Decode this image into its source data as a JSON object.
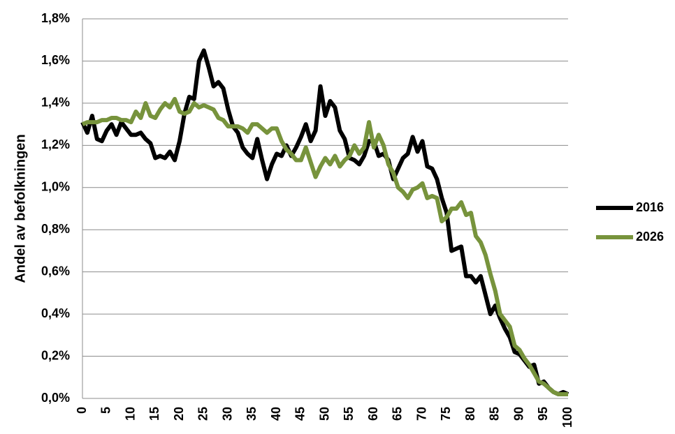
{
  "chart_data": {
    "type": "line",
    "y_label": "Andel  av befolkningen",
    "x": [
      0,
      1,
      2,
      3,
      4,
      5,
      6,
      7,
      8,
      9,
      10,
      11,
      12,
      13,
      14,
      15,
      16,
      17,
      18,
      19,
      20,
      21,
      22,
      23,
      24,
      25,
      26,
      27,
      28,
      29,
      30,
      31,
      32,
      33,
      34,
      35,
      36,
      37,
      38,
      39,
      40,
      41,
      42,
      43,
      44,
      45,
      46,
      47,
      48,
      49,
      50,
      51,
      52,
      53,
      54,
      55,
      56,
      57,
      58,
      59,
      60,
      61,
      62,
      63,
      64,
      65,
      66,
      67,
      68,
      69,
      70,
      71,
      72,
      73,
      74,
      75,
      76,
      77,
      78,
      79,
      80,
      81,
      82,
      83,
      84,
      85,
      86,
      87,
      88,
      89,
      90,
      91,
      92,
      93,
      94,
      95,
      96,
      97,
      98,
      99,
      100
    ],
    "series": [
      {
        "name": "2016",
        "color": "#000000",
        "values": [
          1.31,
          1.26,
          1.34,
          1.23,
          1.22,
          1.27,
          1.3,
          1.25,
          1.31,
          1.28,
          1.25,
          1.25,
          1.26,
          1.23,
          1.21,
          1.14,
          1.15,
          1.14,
          1.17,
          1.13,
          1.22,
          1.35,
          1.43,
          1.42,
          1.6,
          1.65,
          1.57,
          1.48,
          1.5,
          1.47,
          1.37,
          1.29,
          1.26,
          1.19,
          1.16,
          1.14,
          1.23,
          1.13,
          1.04,
          1.11,
          1.16,
          1.15,
          1.2,
          1.15,
          1.19,
          1.24,
          1.3,
          1.22,
          1.27,
          1.48,
          1.34,
          1.41,
          1.38,
          1.27,
          1.23,
          1.14,
          1.13,
          1.11,
          1.15,
          1.22,
          1.22,
          1.15,
          1.16,
          1.13,
          1.04,
          1.09,
          1.14,
          1.16,
          1.24,
          1.17,
          1.22,
          1.1,
          1.09,
          1.04,
          0.95,
          0.88,
          0.7,
          0.71,
          0.72,
          0.58,
          0.58,
          0.55,
          0.58,
          0.49,
          0.4,
          0.44,
          0.38,
          0.33,
          0.29,
          0.22,
          0.21,
          0.18,
          0.15,
          0.16,
          0.07,
          0.08,
          0.05,
          0.03,
          0.02,
          0.03,
          0.02
        ]
      },
      {
        "name": "2026",
        "color": "#77933c",
        "values": [
          1.3,
          1.31,
          1.31,
          1.31,
          1.32,
          1.32,
          1.33,
          1.33,
          1.32,
          1.32,
          1.31,
          1.36,
          1.33,
          1.4,
          1.34,
          1.33,
          1.37,
          1.4,
          1.38,
          1.42,
          1.36,
          1.35,
          1.36,
          1.4,
          1.38,
          1.39,
          1.38,
          1.37,
          1.33,
          1.32,
          1.29,
          1.29,
          1.29,
          1.28,
          1.26,
          1.3,
          1.3,
          1.28,
          1.26,
          1.28,
          1.28,
          1.22,
          1.18,
          1.16,
          1.13,
          1.13,
          1.19,
          1.12,
          1.05,
          1.1,
          1.14,
          1.11,
          1.15,
          1.1,
          1.13,
          1.15,
          1.2,
          1.16,
          1.19,
          1.31,
          1.19,
          1.25,
          1.2,
          1.11,
          1.07,
          1.0,
          0.98,
          0.95,
          0.99,
          1.0,
          1.02,
          0.95,
          0.96,
          0.95,
          0.84,
          0.86,
          0.9,
          0.9,
          0.93,
          0.87,
          0.88,
          0.77,
          0.74,
          0.68,
          0.59,
          0.51,
          0.4,
          0.37,
          0.34,
          0.25,
          0.23,
          0.19,
          0.16,
          0.12,
          0.08,
          0.07,
          0.05,
          0.03,
          0.02,
          0.02,
          0.02
        ]
      }
    ],
    "xlim": [
      0,
      100
    ],
    "xticks": [
      0,
      5,
      10,
      15,
      20,
      25,
      30,
      35,
      40,
      45,
      50,
      55,
      60,
      65,
      70,
      75,
      80,
      85,
      90,
      95,
      100
    ],
    "ylim": [
      0,
      1.8
    ],
    "yticks": [
      {
        "value": 0,
        "label": "0,0%"
      },
      {
        "value": 0.2,
        "label": "0,2%"
      },
      {
        "value": 0.4,
        "label": "0,4%"
      },
      {
        "value": 0.6,
        "label": "0,6%"
      },
      {
        "value": 0.8,
        "label": "0,8%"
      },
      {
        "value": 1.0,
        "label": "1,0%"
      },
      {
        "value": 1.2,
        "label": "1,2%"
      },
      {
        "value": 1.4,
        "label": "1,4%"
      },
      {
        "value": 1.6,
        "label": "1,6%"
      },
      {
        "value": 1.8,
        "label": "1,8%"
      }
    ],
    "grid": true,
    "legend": "right"
  }
}
